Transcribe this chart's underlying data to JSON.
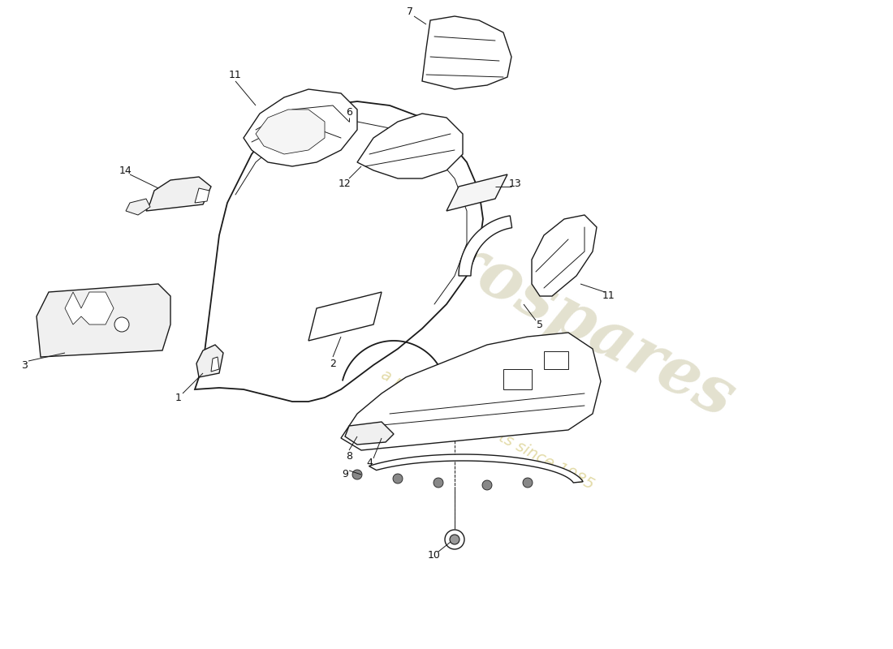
{
  "background_color": "#ffffff",
  "line_color": "#1a1a1a",
  "watermark_color1": "#c8c4a0",
  "watermark_color2": "#d4c87a",
  "lw_main": 1.3,
  "lw_part": 1.0,
  "lw_thin": 0.7,
  "lw_dash": 0.7,
  "label_fontsize": 9,
  "label_color": "#111111"
}
